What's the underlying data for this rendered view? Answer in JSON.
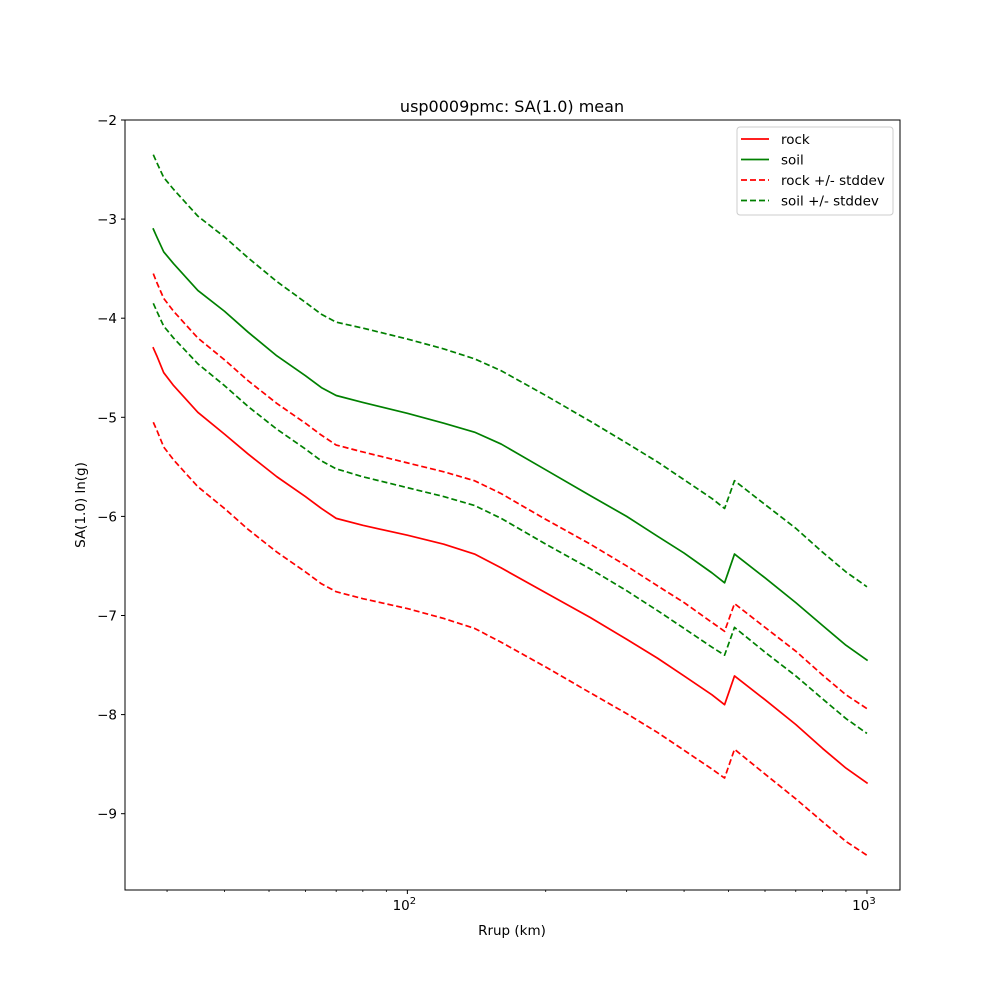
{
  "chart_data": {
    "type": "line",
    "title": "usp0009pmc: SA(1.0) mean",
    "xlabel": "Rrup (km)",
    "ylabel": "SA(1.0) ln(g)",
    "xscale": "log",
    "xlim": [
      24.3,
      1180
    ],
    "ylim": [
      -9.77,
      -2.0
    ],
    "grid": false,
    "legend_position": "top-right",
    "y_ticks": [
      {
        "value": -2,
        "label": "−2"
      },
      {
        "value": -3,
        "label": "−3"
      },
      {
        "value": -4,
        "label": "−4"
      },
      {
        "value": -5,
        "label": "−5"
      },
      {
        "value": -6,
        "label": "−6"
      },
      {
        "value": -7,
        "label": "−7"
      },
      {
        "value": -8,
        "label": "−8"
      },
      {
        "value": -9,
        "label": "−9"
      }
    ],
    "x_major_ticks": [
      {
        "value": 100,
        "base": "10",
        "exp": "2"
      },
      {
        "value": 1000,
        "base": "10",
        "exp": "3"
      }
    ],
    "x_minor_ticks": [
      30,
      40,
      50,
      60,
      70,
      80,
      90,
      200,
      300,
      400,
      500,
      600,
      700,
      800,
      900
    ],
    "series": [
      {
        "name": "rock",
        "color": "#ff0000",
        "style": "solid",
        "points": [
          [
            28,
            -4.3
          ],
          [
            28.5,
            -4.38
          ],
          [
            29.5,
            -4.55
          ],
          [
            31,
            -4.68
          ],
          [
            35,
            -4.95
          ],
          [
            40,
            -5.17
          ],
          [
            45,
            -5.37
          ],
          [
            52,
            -5.6
          ],
          [
            60,
            -5.8
          ],
          [
            65,
            -5.92
          ],
          [
            70,
            -6.02
          ],
          [
            80,
            -6.09
          ],
          [
            100,
            -6.19
          ],
          [
            120,
            -6.28
          ],
          [
            140,
            -6.38
          ],
          [
            160,
            -6.52
          ],
          [
            200,
            -6.77
          ],
          [
            250,
            -7.02
          ],
          [
            300,
            -7.24
          ],
          [
            350,
            -7.43
          ],
          [
            400,
            -7.61
          ],
          [
            460,
            -7.8
          ],
          [
            490,
            -7.9
          ],
          [
            515,
            -7.61
          ],
          [
            600,
            -7.85
          ],
          [
            700,
            -8.1
          ],
          [
            800,
            -8.34
          ],
          [
            900,
            -8.54
          ],
          [
            1000,
            -8.69
          ]
        ]
      },
      {
        "name": "soil",
        "color": "#008000",
        "style": "solid",
        "points": [
          [
            28,
            -3.1
          ],
          [
            28.5,
            -3.18
          ],
          [
            29.5,
            -3.33
          ],
          [
            31,
            -3.45
          ],
          [
            35,
            -3.72
          ],
          [
            40,
            -3.93
          ],
          [
            45,
            -4.14
          ],
          [
            52,
            -4.38
          ],
          [
            60,
            -4.58
          ],
          [
            65,
            -4.7
          ],
          [
            70,
            -4.78
          ],
          [
            80,
            -4.85
          ],
          [
            100,
            -4.96
          ],
          [
            120,
            -5.06
          ],
          [
            140,
            -5.15
          ],
          [
            160,
            -5.27
          ],
          [
            200,
            -5.53
          ],
          [
            250,
            -5.79
          ],
          [
            300,
            -6.0
          ],
          [
            350,
            -6.2
          ],
          [
            400,
            -6.37
          ],
          [
            460,
            -6.57
          ],
          [
            490,
            -6.67
          ],
          [
            515,
            -6.38
          ],
          [
            600,
            -6.62
          ],
          [
            700,
            -6.87
          ],
          [
            800,
            -7.1
          ],
          [
            900,
            -7.3
          ],
          [
            1000,
            -7.45
          ]
        ]
      },
      {
        "name": "rock +/- stddev",
        "color": "#ff0000",
        "style": "dashed",
        "points": [
          [
            28,
            -3.55
          ],
          [
            28.5,
            -3.64
          ],
          [
            29.5,
            -3.8
          ],
          [
            31,
            -3.93
          ],
          [
            35,
            -4.2
          ],
          [
            40,
            -4.42
          ],
          [
            45,
            -4.63
          ],
          [
            52,
            -4.86
          ],
          [
            60,
            -5.06
          ],
          [
            65,
            -5.18
          ],
          [
            70,
            -5.28
          ],
          [
            80,
            -5.35
          ],
          [
            100,
            -5.46
          ],
          [
            120,
            -5.55
          ],
          [
            140,
            -5.64
          ],
          [
            160,
            -5.77
          ],
          [
            200,
            -6.03
          ],
          [
            250,
            -6.28
          ],
          [
            300,
            -6.5
          ],
          [
            350,
            -6.7
          ],
          [
            400,
            -6.87
          ],
          [
            460,
            -7.07
          ],
          [
            490,
            -7.16
          ],
          [
            515,
            -6.88
          ],
          [
            600,
            -7.12
          ],
          [
            700,
            -7.36
          ],
          [
            800,
            -7.6
          ],
          [
            900,
            -7.8
          ],
          [
            1000,
            -7.94
          ]
        ]
      },
      {
        "name": "rock +/- stddev",
        "color": "#ff0000",
        "style": "dashed",
        "points": [
          [
            28,
            -5.05
          ],
          [
            28.5,
            -5.13
          ],
          [
            29.5,
            -5.3
          ],
          [
            31,
            -5.43
          ],
          [
            35,
            -5.7
          ],
          [
            40,
            -5.92
          ],
          [
            45,
            -6.13
          ],
          [
            52,
            -6.36
          ],
          [
            60,
            -6.56
          ],
          [
            65,
            -6.68
          ],
          [
            70,
            -6.76
          ],
          [
            80,
            -6.83
          ],
          [
            100,
            -6.93
          ],
          [
            120,
            -7.03
          ],
          [
            140,
            -7.13
          ],
          [
            160,
            -7.27
          ],
          [
            200,
            -7.52
          ],
          [
            250,
            -7.78
          ],
          [
            300,
            -7.99
          ],
          [
            350,
            -8.18
          ],
          [
            400,
            -8.36
          ],
          [
            460,
            -8.55
          ],
          [
            490,
            -8.64
          ],
          [
            515,
            -8.35
          ],
          [
            600,
            -8.6
          ],
          [
            700,
            -8.85
          ],
          [
            800,
            -9.08
          ],
          [
            900,
            -9.28
          ],
          [
            1000,
            -9.42
          ]
        ]
      },
      {
        "name": "soil +/- stddev",
        "color": "#008000",
        "style": "dashed",
        "points": [
          [
            28,
            -2.35
          ],
          [
            28.5,
            -2.43
          ],
          [
            29.5,
            -2.58
          ],
          [
            31,
            -2.7
          ],
          [
            35,
            -2.97
          ],
          [
            40,
            -3.18
          ],
          [
            45,
            -3.39
          ],
          [
            52,
            -3.63
          ],
          [
            60,
            -3.84
          ],
          [
            65,
            -3.96
          ],
          [
            70,
            -4.04
          ],
          [
            80,
            -4.1
          ],
          [
            100,
            -4.21
          ],
          [
            120,
            -4.31
          ],
          [
            140,
            -4.41
          ],
          [
            160,
            -4.53
          ],
          [
            200,
            -4.78
          ],
          [
            250,
            -5.04
          ],
          [
            300,
            -5.26
          ],
          [
            350,
            -5.45
          ],
          [
            400,
            -5.63
          ],
          [
            460,
            -5.82
          ],
          [
            490,
            -5.92
          ],
          [
            515,
            -5.64
          ],
          [
            600,
            -5.88
          ],
          [
            700,
            -6.12
          ],
          [
            800,
            -6.36
          ],
          [
            900,
            -6.56
          ],
          [
            1000,
            -6.71
          ]
        ]
      },
      {
        "name": "soil +/- stddev",
        "color": "#008000",
        "style": "dashed",
        "points": [
          [
            28,
            -3.85
          ],
          [
            28.5,
            -3.93
          ],
          [
            29.5,
            -4.08
          ],
          [
            31,
            -4.2
          ],
          [
            35,
            -4.46
          ],
          [
            40,
            -4.68
          ],
          [
            45,
            -4.89
          ],
          [
            52,
            -5.12
          ],
          [
            60,
            -5.32
          ],
          [
            65,
            -5.44
          ],
          [
            70,
            -5.52
          ],
          [
            80,
            -5.6
          ],
          [
            100,
            -5.71
          ],
          [
            120,
            -5.8
          ],
          [
            140,
            -5.89
          ],
          [
            160,
            -6.02
          ],
          [
            200,
            -6.28
          ],
          [
            250,
            -6.53
          ],
          [
            300,
            -6.75
          ],
          [
            350,
            -6.95
          ],
          [
            400,
            -7.13
          ],
          [
            460,
            -7.32
          ],
          [
            490,
            -7.4
          ],
          [
            515,
            -7.12
          ],
          [
            600,
            -7.37
          ],
          [
            700,
            -7.61
          ],
          [
            800,
            -7.84
          ],
          [
            900,
            -8.04
          ],
          [
            1000,
            -8.19
          ]
        ]
      }
    ],
    "legend": [
      {
        "label": "rock",
        "color": "#ff0000",
        "style": "solid"
      },
      {
        "label": "soil",
        "color": "#008000",
        "style": "solid"
      },
      {
        "label": "rock +/- stddev",
        "color": "#ff0000",
        "style": "dashed"
      },
      {
        "label": "soil +/- stddev",
        "color": "#008000",
        "style": "dashed"
      }
    ]
  }
}
